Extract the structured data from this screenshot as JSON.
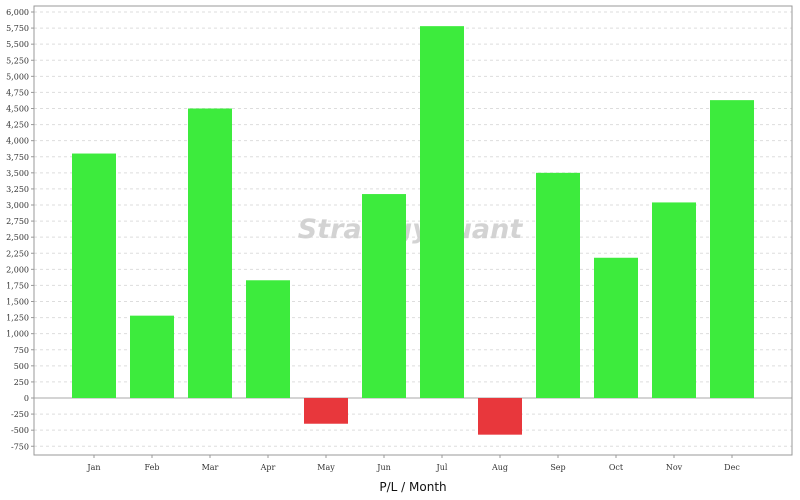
{
  "watermark": "StrategyQuant",
  "chart_data": {
    "type": "bar",
    "title": "",
    "xlabel": "P/L / Month",
    "ylabel": "",
    "categories": [
      "Jan",
      "Feb",
      "Mar",
      "Apr",
      "May",
      "Jun",
      "Jul",
      "Aug",
      "Sep",
      "Oct",
      "Nov",
      "Dec"
    ],
    "values": [
      3800,
      1280,
      4500,
      1830,
      -400,
      3170,
      5780,
      -570,
      3500,
      2180,
      3040,
      4630
    ],
    "ylim": [
      -850,
      6100
    ],
    "yticks": [
      -750,
      -500,
      -250,
      0,
      250,
      500,
      750,
      1000,
      1250,
      1500,
      1750,
      2000,
      2250,
      2500,
      2750,
      3000,
      3250,
      3500,
      3750,
      4000,
      4250,
      4500,
      4750,
      5000,
      5250,
      5500,
      5750,
      6000
    ],
    "ytick_labels": [
      "-750",
      "-500",
      "-250",
      "0",
      "250",
      "500",
      "750",
      "1,000",
      "1,250",
      "1,500",
      "1,750",
      "2,000",
      "2,250",
      "2,500",
      "2,750",
      "3,000",
      "3,250",
      "3,500",
      "3,750",
      "4,000",
      "4,250",
      "4,500",
      "4,750",
      "5,000",
      "5,250",
      "5,500",
      "5,750",
      "6,000"
    ],
    "grid": true,
    "colors": {
      "positive": "#3deb3d",
      "negative": "#e8373c",
      "grid": "#dddddd",
      "axis": "#999999",
      "zero_line": "#aaaaaa"
    }
  }
}
